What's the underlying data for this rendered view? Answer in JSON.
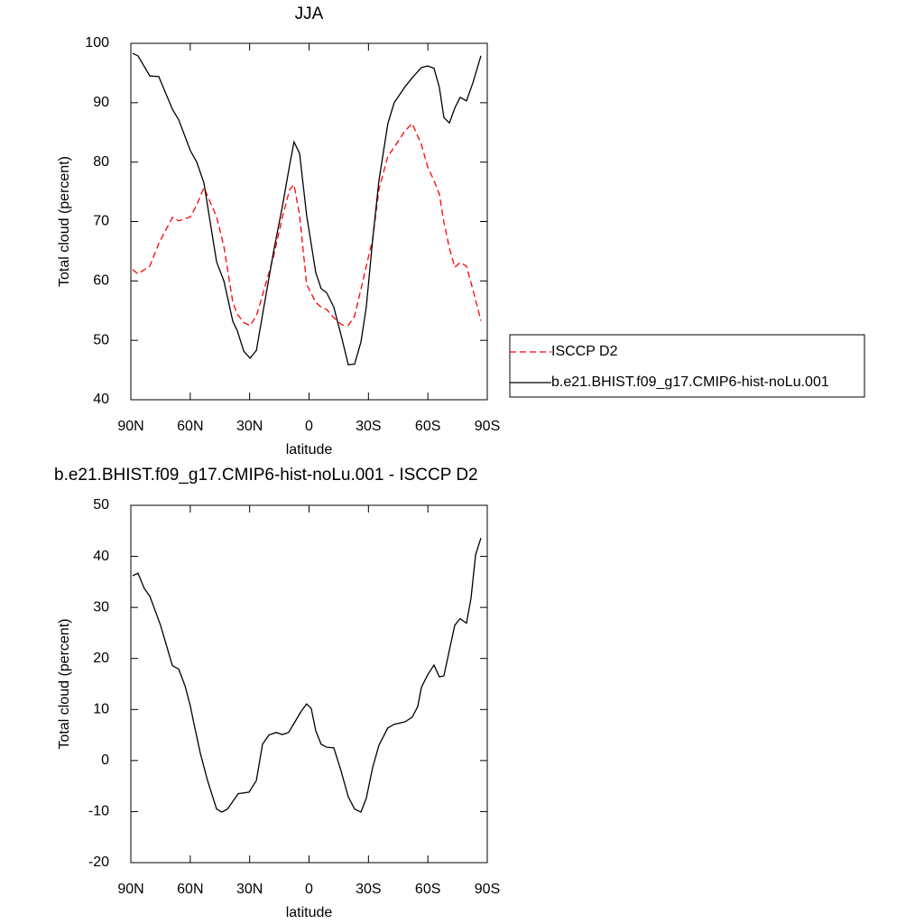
{
  "chart_data": [
    {
      "type": "line",
      "title": "JJA",
      "xlabel": "latitude",
      "ylabel": "Total cloud (percent)",
      "x": [
        89.1,
        86.4,
        80.4,
        75.9,
        69.0,
        65.8,
        59.9,
        56.7,
        53.1,
        46.7,
        43.0,
        38.5,
        36.2,
        33.0,
        29.8,
        26.6,
        23.5,
        18.0,
        13.5,
        9.8,
        7.6,
        4.8,
        1.2,
        -3.4,
        -6.1,
        -8.9,
        -12.5,
        -16.6,
        -19.8,
        -23.0,
        -26.2,
        -28.9,
        -32.1,
        -35.3,
        -39.8,
        -43.0,
        -48.5,
        -52.1,
        -56.7,
        -59.9,
        -63.1,
        -65.8,
        -68.1,
        -70.9,
        -73.6,
        -76.3,
        -79.5,
        -82.7,
        -86.8
      ],
      "series": [
        {
          "name": "ISCCP D2",
          "color": "#ff0000",
          "dashed": true,
          "values": [
            61.9,
            61.2,
            62.5,
            66.3,
            70.7,
            70.1,
            70.8,
            72.8,
            75.7,
            70.8,
            65.8,
            56.4,
            54.4,
            53.0,
            52.5,
            54.1,
            57.6,
            64.0,
            70.7,
            75.4,
            76.2,
            71.1,
            59.4,
            56.4,
            55.6,
            55.2,
            53.8,
            52.6,
            52.5,
            54.1,
            58.6,
            62.5,
            67.0,
            75.4,
            81.0,
            82.5,
            85.3,
            86.5,
            83.0,
            79.2,
            76.9,
            74.6,
            69.9,
            65.5,
            62.3,
            63.1,
            62.5,
            58.6,
            53.3
          ]
        },
        {
          "name": "b.e21.BHIST.f09_g17.CMIP6-hist-noLu.001",
          "color": "#000000",
          "dashed": false,
          "values": [
            98.3,
            97.9,
            94.5,
            94.4,
            88.9,
            87.1,
            81.9,
            80.0,
            76.5,
            63.2,
            60.0,
            53.2,
            51.6,
            48.2,
            47.0,
            48.3,
            54.3,
            64.8,
            72.5,
            79.5,
            83.4,
            81.5,
            71.0,
            61.4,
            58.7,
            58.0,
            55.6,
            50.3,
            45.9,
            46.0,
            49.7,
            55.6,
            66.9,
            76.9,
            86.5,
            90.0,
            92.7,
            94.2,
            95.9,
            96.2,
            95.8,
            92.6,
            87.5,
            86.6,
            89.1,
            90.9,
            90.3,
            93.3,
            97.9
          ]
        }
      ],
      "xlim": [
        90,
        -90
      ],
      "xticks": [
        {
          "value": 90,
          "label": "90N"
        },
        {
          "value": 60,
          "label": "60N"
        },
        {
          "value": 30,
          "label": "30N"
        },
        0,
        {
          "value": -30,
          "label": "30S"
        },
        {
          "value": -60,
          "label": "60S"
        },
        {
          "value": -90,
          "label": "90S"
        }
      ],
      "ylim": [
        40,
        100
      ],
      "yticks": [
        40,
        50,
        60,
        70,
        80,
        90,
        100
      ],
      "legend": "right"
    },
    {
      "type": "line",
      "title": "b.e21.BHIST.f09_g17.CMIP6-hist-noLu.001 - ISCCP D2",
      "xlabel": "latitude",
      "ylabel": "Total cloud (percent)",
      "x": [
        89.1,
        86.4,
        83.2,
        80.4,
        75.0,
        69.0,
        65.8,
        62.6,
        59.9,
        58.5,
        54.9,
        51.2,
        46.7,
        44.0,
        41.2,
        35.8,
        30.3,
        26.6,
        23.5,
        20.3,
        16.6,
        13.5,
        10.3,
        7.1,
        3.9,
        1.2,
        -1.1,
        -3.4,
        -6.1,
        -8.9,
        -12.5,
        -16.2,
        -19.8,
        -23.0,
        -26.2,
        -28.9,
        -32.1,
        -35.3,
        -39.8,
        -43.0,
        -48.5,
        -52.1,
        -54.9,
        -56.7,
        -59.9,
        -63.1,
        -65.8,
        -68.1,
        -70.9,
        -73.6,
        -76.3,
        -79.5,
        -81.8,
        -84.1,
        -86.8
      ],
      "series": [
        {
          "name": null,
          "color": "#000000",
          "dashed": false,
          "values": [
            36.2,
            36.7,
            33.7,
            32.2,
            26.5,
            18.6,
            17.9,
            14.6,
            10.6,
            7.9,
            1.4,
            -4.0,
            -9.5,
            -10.1,
            -9.5,
            -6.5,
            -6.2,
            -3.9,
            3.2,
            5.0,
            5.5,
            5.1,
            5.5,
            7.6,
            9.7,
            11.1,
            10.2,
            5.8,
            3.2,
            2.6,
            2.5,
            -2.1,
            -7.1,
            -9.5,
            -10.1,
            -7.4,
            -1.4,
            3.0,
            6.4,
            7.1,
            7.6,
            8.5,
            10.6,
            14.3,
            16.8,
            18.7,
            16.4,
            16.6,
            21.7,
            26.5,
            27.8,
            26.9,
            31.8,
            40.3,
            43.6
          ]
        }
      ],
      "xlim": [
        90,
        -90
      ],
      "xticks": [
        {
          "value": 90,
          "label": "90N"
        },
        {
          "value": 60,
          "label": "60N"
        },
        {
          "value": 30,
          "label": "30N"
        },
        0,
        {
          "value": -30,
          "label": "30S"
        },
        {
          "value": -60,
          "label": "60S"
        },
        {
          "value": -90,
          "label": "90S"
        }
      ],
      "ylim": [
        -20,
        50
      ],
      "yticks": [
        -20,
        -10,
        0,
        10,
        20,
        30,
        40,
        50
      ]
    }
  ]
}
